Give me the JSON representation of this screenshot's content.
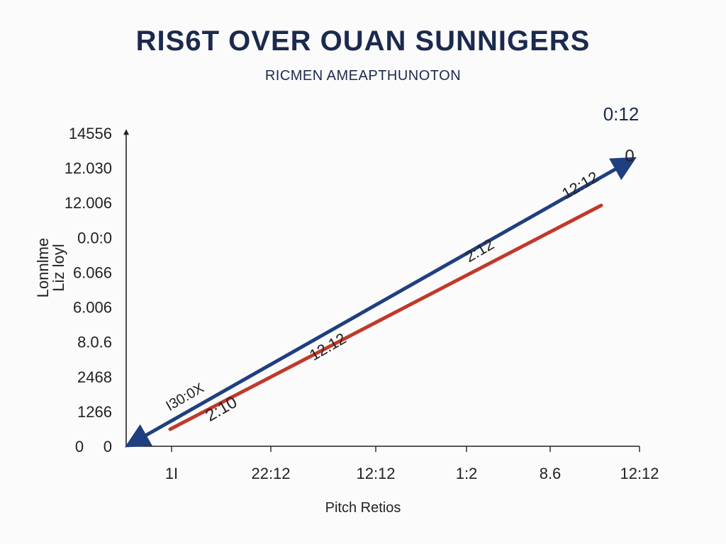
{
  "chart_data": {
    "type": "line",
    "title": "RIS6T OVER OUAN SUNNIGERS",
    "subtitle": "RICMEN AMEAPTHUNOTON",
    "xlabel": "Pitch Retios",
    "ylabel": "Lonnlme\nLiz loyl",
    "x_ticks": [
      "1I",
      "22:12",
      "12:12",
      "1:2",
      "8.6",
      "12:12"
    ],
    "y_ticks": [
      "0",
      "1266",
      "2468",
      "8.0.6",
      "6.006",
      "6.066",
      "0.0:0",
      "12.006",
      "12.030",
      "14556"
    ],
    "origin_label": "0",
    "series": [
      {
        "values": [
          0,
          9
        ],
        "color": "#1f3f80"
      },
      {
        "values": [
          0.05,
          8.1
        ],
        "color": "#c0392b"
      }
    ],
    "annotations": [
      {
        "text": "0:12",
        "color": "#1b2a4e"
      },
      {
        "text": "0",
        "color": "#222222"
      },
      {
        "text": "12:12",
        "color": "#222222"
      },
      {
        "text": "2:12",
        "color": "#222222"
      },
      {
        "text": "12.12",
        "color": "#222222"
      },
      {
        "text": "2:10",
        "color": "#222222"
      },
      {
        "text": "I30:0X",
        "color": "#222222"
      }
    ]
  }
}
